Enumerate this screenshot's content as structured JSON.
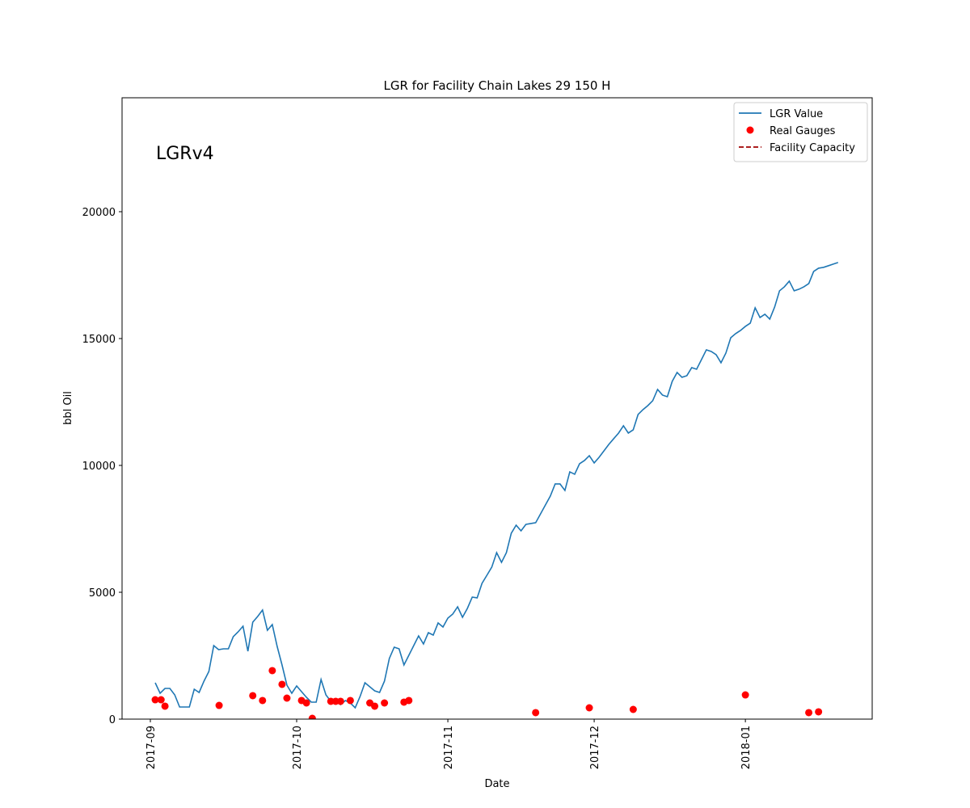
{
  "chart_data": {
    "type": "line",
    "title": "LGR for Facility Chain Lakes 29 150 H",
    "annotation": "LGRv4",
    "xlabel": "Date",
    "ylabel": "bbl Oil",
    "xlim": [
      17404.2,
      17558
    ],
    "ylim": [
      0,
      24490
    ],
    "xticks": [
      {
        "value": 17410,
        "label": "2017-09"
      },
      {
        "value": 17440,
        "label": "2017-10"
      },
      {
        "value": 17471,
        "label": "2017-11"
      },
      {
        "value": 17501,
        "label": "2017-12"
      },
      {
        "value": 17532,
        "label": "2018-01"
      }
    ],
    "yticks": [
      0,
      5000,
      10000,
      15000,
      20000
    ],
    "grid": false,
    "legend": "upper right",
    "series": [
      {
        "name": "LGR Value",
        "type": "line",
        "color": "#1f77b4",
        "x": [
          17411,
          17412,
          17413,
          17414,
          17415,
          17416,
          17417,
          17418,
          17419,
          17420,
          17421,
          17422,
          17423,
          17424,
          17425,
          17426,
          17427,
          17428,
          17429,
          17430,
          17431,
          17432,
          17433,
          17434,
          17435,
          17436,
          17437,
          17438,
          17439,
          17440,
          17441,
          17442,
          17443,
          17444,
          17445,
          17446,
          17447,
          17448,
          17449,
          17450,
          17451,
          17452,
          17453,
          17454,
          17455,
          17456,
          17457,
          17458,
          17459,
          17460,
          17461,
          17462,
          17463,
          17464,
          17465,
          17466,
          17467,
          17468,
          17469,
          17470,
          17471,
          17472,
          17473,
          17474,
          17475,
          17476,
          17477,
          17478,
          17479,
          17480,
          17481,
          17482,
          17483,
          17484,
          17485,
          17486,
          17487,
          17488,
          17489,
          17490,
          17491,
          17492,
          17493,
          17494,
          17495,
          17496,
          17497,
          17498,
          17499,
          17500,
          17501,
          17502,
          17503,
          17504,
          17505,
          17506,
          17507,
          17508,
          17509,
          17510,
          17511,
          17512,
          17513,
          17514,
          17515,
          17516,
          17517,
          17518,
          17519,
          17520,
          17521,
          17522,
          17523,
          17524,
          17525,
          17526,
          17527,
          17528,
          17529,
          17530,
          17531,
          17532,
          17533,
          17534,
          17535,
          17536,
          17537,
          17538,
          17539,
          17540,
          17541,
          17542,
          17543,
          17544,
          17545,
          17546,
          17547,
          17548,
          17549,
          17550,
          17551
        ],
        "values": [
          1433,
          1019,
          1210,
          1210,
          955,
          478,
          478,
          478,
          1178,
          1051,
          1497,
          1879,
          2898,
          2739,
          2771,
          2771,
          3249,
          3440,
          3663,
          2675,
          3822,
          4045,
          4300,
          3503,
          3726,
          2866,
          2134,
          1338,
          1019,
          1306,
          1083,
          860,
          669,
          669,
          1561,
          955,
          701,
          764,
          573,
          733,
          637,
          446,
          892,
          1433,
          1274,
          1115,
          1051,
          1497,
          2389,
          2835,
          2771,
          2134,
          2516,
          2898,
          3280,
          2962,
          3408,
          3312,
          3790,
          3631,
          3981,
          4140,
          4427,
          4013,
          4363,
          4809,
          4778,
          5351,
          5669,
          5988,
          6561,
          6179,
          6561,
          7326,
          7644,
          7421,
          7676,
          7708,
          7740,
          8090,
          8440,
          8790,
          9268,
          9268,
          9014,
          9746,
          9651,
          10065,
          10192,
          10383,
          10097,
          10319,
          10574,
          10829,
          11052,
          11275,
          11561,
          11275,
          11402,
          12007,
          12198,
          12357,
          12549,
          12995,
          12772,
          12708,
          13313,
          13664,
          13473,
          13536,
          13855,
          13791,
          14173,
          14556,
          14492,
          14364,
          14046,
          14428,
          15033,
          15193,
          15320,
          15479,
          15607,
          16212,
          15829,
          15957,
          15766,
          16244,
          16881,
          17040,
          17263,
          16881,
          16945,
          17040,
          17168,
          17645,
          17773,
          17805,
          17868,
          17932,
          17996
        ]
      },
      {
        "name": "Real Gauges",
        "type": "scatter",
        "color": "#ff0000",
        "x": [
          17411,
          17412.2,
          17413,
          17424.1,
          17431,
          17433,
          17435,
          17437,
          17438,
          17441,
          17442,
          17443.2,
          17447,
          17448,
          17449,
          17451,
          17455,
          17456,
          17458,
          17462,
          17463,
          17489,
          17500,
          17509,
          17532,
          17545,
          17547
        ],
        "values": [
          764,
          764,
          510,
          541,
          924,
          733,
          1911,
          1370,
          828,
          733,
          637,
          32,
          701,
          701,
          701,
          733,
          637,
          510,
          637,
          669,
          733,
          255,
          446,
          382,
          955,
          255,
          287
        ]
      },
      {
        "name": "Facility Capacity",
        "type": "line",
        "color": "#a00000",
        "linestyle": "dashed"
      }
    ]
  }
}
